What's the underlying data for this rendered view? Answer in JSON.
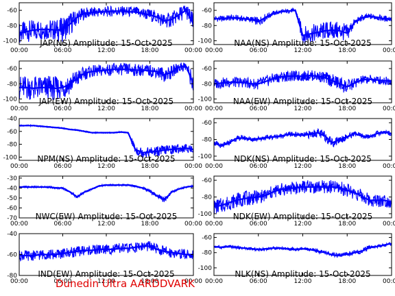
{
  "footer": "Dunedin Ultra AARDDVARK",
  "x_ticks": [
    "00:00",
    "06:00",
    "12:00",
    "18:00",
    "00:00"
  ],
  "series_color": "#0000ff",
  "chart_data": [
    {
      "type": "line",
      "title": "JAP(NS) Amplitude: 15-Oct-2025",
      "xlim": [
        0,
        24
      ],
      "ylim": [
        -105,
        -50
      ],
      "yticks": [
        -100,
        -80,
        -60
      ],
      "x": [
        0,
        1,
        2,
        3,
        4,
        5,
        6,
        7,
        8,
        9,
        10,
        11,
        12,
        13,
        14,
        15,
        16,
        17,
        18,
        19,
        20,
        21,
        22,
        23,
        24
      ],
      "values": [
        -90,
        -88,
        -86,
        -85,
        -85,
        -86,
        -85,
        -78,
        -69,
        -64,
        -63,
        -62,
        -62,
        -61,
        -61,
        -62,
        -62,
        -64,
        -66,
        -69,
        -74,
        -72,
        -66,
        -60,
        -78
      ],
      "spread": [
        14,
        14,
        14,
        14,
        14,
        14,
        16,
        16,
        10,
        8,
        7,
        7,
        7,
        7,
        7,
        7,
        7,
        8,
        8,
        9,
        10,
        10,
        10,
        10,
        14
      ]
    },
    {
      "type": "line",
      "title": "NAA(NS) Amplitude: 15-Oct-2025",
      "xlim": [
        0,
        24
      ],
      "ylim": [
        -105,
        -50
      ],
      "yticks": [
        -100,
        -80,
        -60
      ],
      "x": [
        0,
        1,
        2,
        3,
        4,
        5,
        6,
        7,
        8,
        9,
        10,
        11,
        12,
        13,
        14,
        15,
        16,
        17,
        18,
        19,
        20,
        21,
        22,
        23,
        24
      ],
      "values": [
        -71,
        -71,
        -70,
        -70,
        -71,
        -72,
        -75,
        -69,
        -64,
        -62,
        -61,
        -60,
        -93,
        -91,
        -89,
        -87,
        -86,
        -87,
        -90,
        -76,
        -70,
        -68,
        -69,
        -71,
        -71
      ],
      "spread": [
        4,
        4,
        4,
        4,
        4,
        4,
        6,
        5,
        3,
        3,
        3,
        3,
        12,
        12,
        12,
        12,
        12,
        12,
        12,
        5,
        4,
        4,
        4,
        4,
        4
      ]
    },
    {
      "type": "line",
      "title": "JAP(EW) Amplitude: 15-Oct-2025",
      "xlim": [
        0,
        24
      ],
      "ylim": [
        -105,
        -50
      ],
      "yticks": [
        -100,
        -80,
        -60
      ],
      "x": [
        0,
        1,
        2,
        3,
        4,
        5,
        6,
        7,
        8,
        9,
        10,
        11,
        12,
        13,
        14,
        15,
        16,
        17,
        18,
        19,
        20,
        21,
        22,
        23,
        24
      ],
      "values": [
        -85,
        -85,
        -86,
        -85,
        -85,
        -86,
        -85,
        -80,
        -73,
        -66,
        -64,
        -63,
        -62,
        -61,
        -61,
        -61,
        -62,
        -62,
        -63,
        -64,
        -68,
        -65,
        -58,
        -57,
        -80
      ],
      "spread": [
        16,
        16,
        16,
        16,
        16,
        16,
        16,
        14,
        12,
        9,
        8,
        8,
        8,
        8,
        8,
        8,
        8,
        8,
        8,
        8,
        10,
        9,
        7,
        7,
        14
      ]
    },
    {
      "type": "line",
      "title": "NAA(EW) Amplitude: 15-Oct-2025",
      "xlim": [
        0,
        24
      ],
      "ylim": [
        -105,
        -50
      ],
      "yticks": [
        -100,
        -80,
        -60
      ],
      "x": [
        0,
        1,
        2,
        3,
        4,
        5,
        6,
        7,
        8,
        9,
        10,
        11,
        12,
        13,
        14,
        15,
        16,
        17,
        18,
        19,
        20,
        21,
        22,
        23,
        24
      ],
      "values": [
        -80,
        -79,
        -78,
        -78,
        -78,
        -80,
        -80,
        -77,
        -73,
        -71,
        -70,
        -70,
        -70,
        -69,
        -70,
        -72,
        -76,
        -80,
        -84,
        -79,
        -75,
        -74,
        -75,
        -76,
        -76
      ],
      "spread": [
        7,
        7,
        7,
        7,
        7,
        7,
        8,
        8,
        7,
        7,
        7,
        7,
        7,
        7,
        7,
        8,
        9,
        10,
        10,
        7,
        6,
        6,
        6,
        6,
        6
      ]
    },
    {
      "type": "line",
      "title": "NPM(NS) Amplitude: 15-Oct-2025",
      "xlim": [
        0,
        24
      ],
      "ylim": [
        -105,
        -40
      ],
      "yticks": [
        -100,
        -80,
        -60,
        -40
      ],
      "x": [
        0,
        1,
        2,
        3,
        4,
        5,
        6,
        7,
        8,
        9,
        10,
        11,
        12,
        13,
        14,
        15,
        16,
        17,
        18,
        19,
        20,
        21,
        22,
        23,
        24
      ],
      "values": [
        -51,
        -51,
        -51,
        -52,
        -53,
        -54,
        -55,
        -57,
        -58,
        -60,
        -62,
        -62,
        -62,
        -62,
        -61,
        -62,
        -88,
        -93,
        -92,
        -91,
        -89,
        -88,
        -87,
        -86,
        -88
      ],
      "spread": [
        1,
        1,
        1,
        1,
        1,
        1,
        1,
        1,
        1,
        1,
        1,
        1,
        1,
        1,
        1,
        1,
        9,
        8,
        8,
        8,
        8,
        8,
        7,
        7,
        7
      ]
    },
    {
      "type": "line",
      "title": "NDK(NS) Amplitude: 15-Oct-2025",
      "xlim": [
        0,
        24
      ],
      "ylim": [
        -105,
        -55
      ],
      "yticks": [
        -100,
        -80,
        -60
      ],
      "x": [
        0,
        1,
        2,
        3,
        4,
        5,
        6,
        7,
        8,
        9,
        10,
        11,
        12,
        13,
        14,
        15,
        16,
        17,
        18,
        19,
        20,
        21,
        22,
        23,
        24
      ],
      "values": [
        -84,
        -88,
        -84,
        -79,
        -78,
        -80,
        -79,
        -78,
        -77,
        -76,
        -74,
        -74,
        -75,
        -74,
        -72,
        -76,
        -84,
        -80,
        -77,
        -73,
        -76,
        -77,
        -73,
        -71,
        -73
      ],
      "spread": [
        3,
        3,
        3,
        3,
        3,
        3,
        3,
        3,
        3,
        3,
        3,
        3,
        3,
        5,
        5,
        6,
        6,
        5,
        4,
        3,
        3,
        3,
        3,
        3,
        3
      ]
    },
    {
      "type": "line",
      "title": "NWC(EW) Amplitude: 15-Oct-2025",
      "xlim": [
        0,
        24
      ],
      "ylim": [
        -70,
        -28
      ],
      "yticks": [
        -70,
        -60,
        -50,
        -40,
        -30
      ],
      "x": [
        0,
        1,
        2,
        3,
        4,
        5,
        6,
        7,
        8,
        9,
        10,
        11,
        12,
        13,
        14,
        15,
        16,
        17,
        18,
        19,
        20,
        21,
        22,
        23,
        24
      ],
      "values": [
        -39,
        -39,
        -39,
        -39,
        -39,
        -40,
        -40,
        -44,
        -49,
        -44,
        -41,
        -38,
        -37,
        -37,
        -37,
        -37,
        -38,
        -40,
        -43,
        -48,
        -52,
        -44,
        -41,
        -39,
        -38
      ],
      "spread": [
        1,
        1,
        1,
        1,
        1,
        1,
        1,
        1,
        2,
        1,
        1,
        1,
        1,
        1,
        1,
        1,
        1,
        1,
        2,
        2,
        3,
        2,
        1,
        1,
        1
      ]
    },
    {
      "type": "line",
      "title": "NDK(EW) Amplitude: 15-Oct-2025",
      "xlim": [
        0,
        24
      ],
      "ylim": [
        -105,
        -55
      ],
      "yticks": [
        -100,
        -80,
        -60
      ],
      "x": [
        0,
        1,
        2,
        3,
        4,
        5,
        6,
        7,
        8,
        9,
        10,
        11,
        12,
        13,
        14,
        15,
        16,
        17,
        18,
        19,
        20,
        21,
        22,
        23,
        24
      ],
      "values": [
        -92,
        -90,
        -87,
        -84,
        -82,
        -81,
        -80,
        -78,
        -74,
        -71,
        -70,
        -69,
        -68,
        -68,
        -68,
        -68,
        -68,
        -69,
        -72,
        -75,
        -79,
        -84,
        -84,
        -84,
        -86
      ],
      "spread": [
        9,
        9,
        9,
        9,
        9,
        9,
        8,
        8,
        8,
        8,
        8,
        8,
        8,
        8,
        8,
        8,
        8,
        8,
        8,
        8,
        8,
        8,
        8,
        8,
        8
      ]
    },
    {
      "type": "line",
      "title": "IND(EW) Amplitude: 15-Oct-2025",
      "xlim": [
        0,
        24
      ],
      "ylim": [
        -80,
        -40
      ],
      "yticks": [
        -80,
        -60,
        -40
      ],
      "x": [
        0,
        1,
        2,
        3,
        4,
        5,
        6,
        7,
        8,
        9,
        10,
        11,
        12,
        13,
        14,
        15,
        16,
        17,
        18,
        19,
        20,
        21,
        22,
        23,
        24
      ],
      "values": [
        -61,
        -61,
        -61,
        -60,
        -60,
        -60,
        -59,
        -58,
        -57,
        -56,
        -56,
        -55,
        -55,
        -55,
        -54,
        -54,
        -53,
        -52,
        -52,
        -55,
        -57,
        -58,
        -59,
        -60,
        -60
      ],
      "spread": [
        5,
        5,
        5,
        5,
        5,
        5,
        5,
        5,
        5,
        5,
        5,
        5,
        5,
        5,
        5,
        5,
        5,
        5,
        5,
        5,
        5,
        5,
        5,
        5,
        5
      ]
    },
    {
      "type": "line",
      "title": "NLK(NS) Amplitude: 15-Oct-2025",
      "xlim": [
        0,
        24
      ],
      "ylim": [
        -110,
        -55
      ],
      "yticks": [
        -100,
        -80,
        -60
      ],
      "x": [
        0,
        1,
        2,
        3,
        4,
        5,
        6,
        7,
        8,
        9,
        10,
        11,
        12,
        13,
        14,
        15,
        16,
        17,
        18,
        19,
        20,
        21,
        22,
        23,
        24
      ],
      "values": [
        -72,
        -73,
        -72,
        -73,
        -74,
        -75,
        -76,
        -75,
        -74,
        -74,
        -75,
        -76,
        -75,
        -76,
        -78,
        -80,
        -83,
        -84,
        -82,
        -80,
        -78,
        -73,
        -72,
        -70,
        -68
      ],
      "spread": [
        2,
        2,
        2,
        2,
        2,
        2,
        2,
        2,
        2,
        2,
        2,
        2,
        2,
        2,
        3,
        3,
        3,
        3,
        3,
        3,
        3,
        3,
        2,
        2,
        2
      ]
    }
  ]
}
